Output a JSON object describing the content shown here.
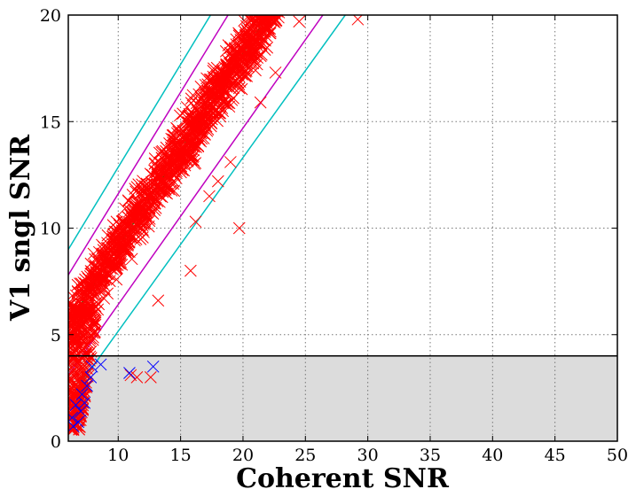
{
  "chart_data": {
    "type": "scatter",
    "xlabel": "Coherent SNR",
    "ylabel": "V1 sngl SNR",
    "xlim": [
      6,
      50
    ],
    "ylim": [
      0,
      20
    ],
    "xticks": [
      10,
      15,
      20,
      25,
      30,
      35,
      40,
      45,
      50
    ],
    "yticks": [
      0,
      5,
      10,
      15,
      20
    ],
    "grid": true,
    "marker": "x",
    "shaded_region": {
      "y_from": 0,
      "y_to": 4,
      "color": "#dcdcdc"
    },
    "threshold_line": {
      "y": 4,
      "color": "#000000"
    },
    "colors": {
      "red_series": "#ff0000",
      "blue_series": "#0000ff",
      "cyan_lines": "#00bfbf",
      "magenta_lines": "#bf00bf",
      "green_line": "#008000"
    },
    "lines": [
      {
        "color": "cyan",
        "points": [
          [
            6,
            9.0
          ],
          [
            17.4,
            20.0
          ]
        ]
      },
      {
        "color": "cyan",
        "points": [
          [
            6,
            1.9
          ],
          [
            28.2,
            20.0
          ]
        ]
      },
      {
        "color": "magenta",
        "points": [
          [
            6,
            7.8
          ],
          [
            18.8,
            20.0
          ]
        ]
      },
      {
        "color": "magenta",
        "points": [
          [
            6,
            3.1
          ],
          [
            26.4,
            20.0
          ]
        ]
      },
      {
        "color": "green",
        "points": [
          [
            6,
            5.5
          ],
          [
            22.0,
            20.0
          ]
        ]
      }
    ],
    "band": {
      "color": "red",
      "description_free": true,
      "x_start": 6.0,
      "x_end": 22.0,
      "y_at_start": 5.5,
      "y_at_end": 20.0,
      "spread": 1.3,
      "count": 1400
    },
    "low_snr_cluster": {
      "x_range": [
        6.0,
        8.2
      ],
      "y_range": [
        0.5,
        6.5
      ],
      "count": 300
    },
    "red_outliers": [
      {
        "x": 29.2,
        "y": 19.8
      },
      {
        "x": 19.7,
        "y": 10.0
      },
      {
        "x": 15.8,
        "y": 8.0
      },
      {
        "x": 13.2,
        "y": 6.6
      },
      {
        "x": 11.0,
        "y": 3.1
      },
      {
        "x": 11.5,
        "y": 3.0
      },
      {
        "x": 12.6,
        "y": 3.0
      },
      {
        "x": 19.0,
        "y": 13.1
      },
      {
        "x": 21.4,
        "y": 15.9
      },
      {
        "x": 22.6,
        "y": 17.3
      },
      {
        "x": 24.5,
        "y": 19.7
      },
      {
        "x": 18.0,
        "y": 12.2
      },
      {
        "x": 16.2,
        "y": 10.3
      },
      {
        "x": 17.3,
        "y": 11.5
      }
    ],
    "blue_points": [
      {
        "x": 6.4,
        "y": 0.7
      },
      {
        "x": 6.8,
        "y": 0.9
      },
      {
        "x": 6.3,
        "y": 1.1
      },
      {
        "x": 7.0,
        "y": 1.4
      },
      {
        "x": 7.3,
        "y": 1.8
      },
      {
        "x": 7.5,
        "y": 2.6
      },
      {
        "x": 7.8,
        "y": 3.0
      },
      {
        "x": 7.9,
        "y": 3.5
      },
      {
        "x": 8.6,
        "y": 3.6
      },
      {
        "x": 10.9,
        "y": 3.2
      },
      {
        "x": 12.8,
        "y": 3.5
      },
      {
        "x": 6.6,
        "y": 1.7
      },
      {
        "x": 7.1,
        "y": 2.2
      }
    ]
  }
}
